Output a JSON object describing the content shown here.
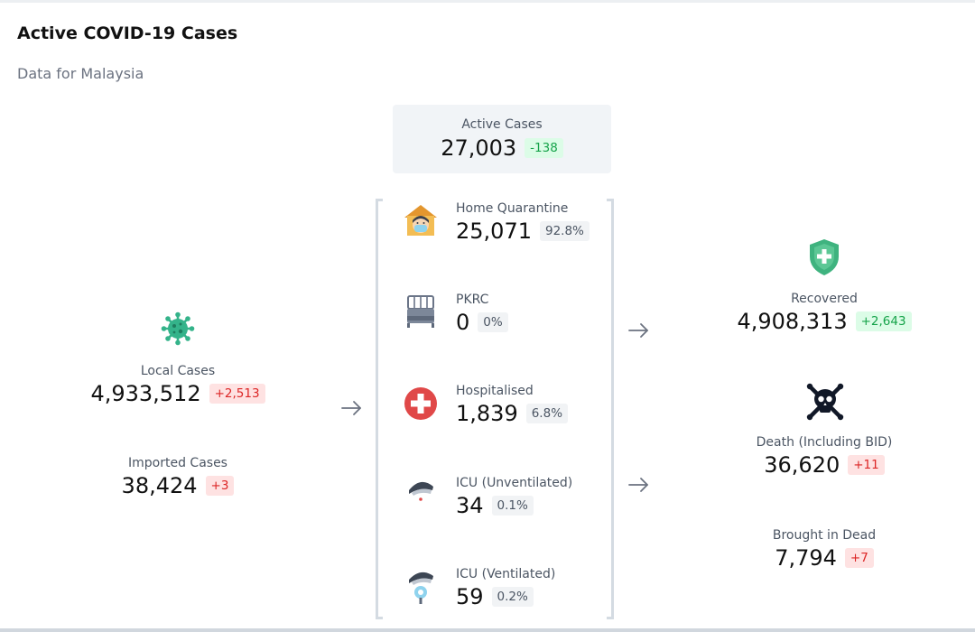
{
  "header": {
    "title": "Active COVID-19 Cases",
    "subtitle": "Data for Malaysia"
  },
  "active": {
    "label": "Active Cases",
    "value": "27,003",
    "change": "-138"
  },
  "left": {
    "local": {
      "label": "Local Cases",
      "value": "4,933,512",
      "change": "+2,513",
      "icon": "virus-icon"
    },
    "imported": {
      "label": "Imported Cases",
      "value": "38,424",
      "change": "+3"
    }
  },
  "middle": [
    {
      "label": "Home Quarantine",
      "value": "25,071",
      "pct": "92.8%",
      "icon": "home-quarantine-icon"
    },
    {
      "label": "PKRC",
      "value": "0",
      "pct": "0%",
      "icon": "bed-icon"
    },
    {
      "label": "Hospitalised",
      "value": "1,839",
      "pct": "6.8%",
      "icon": "hospital-cross-icon"
    },
    {
      "label": "ICU (Unventilated)",
      "value": "34",
      "pct": "0.1%",
      "icon": "icu-unventilated-icon"
    },
    {
      "label": "ICU (Ventilated)",
      "value": "59",
      "pct": "0.2%",
      "icon": "icu-ventilated-icon"
    }
  ],
  "right": {
    "recovered": {
      "label": "Recovered",
      "value": "4,908,313",
      "change": "+2,643",
      "icon": "shield-plus-icon"
    },
    "death": {
      "label": "Death (Including BID)",
      "value": "36,620",
      "change": "+11",
      "icon": "skull-crossbones-icon"
    },
    "bid": {
      "label": "Brought in Dead",
      "value": "7,794",
      "change": "+7"
    }
  },
  "colors": {
    "accent_green": "#16a34a",
    "accent_red": "#dc2626",
    "virus": "#34b38a",
    "shield": "#3fb37f",
    "hospital": "#e04848"
  }
}
